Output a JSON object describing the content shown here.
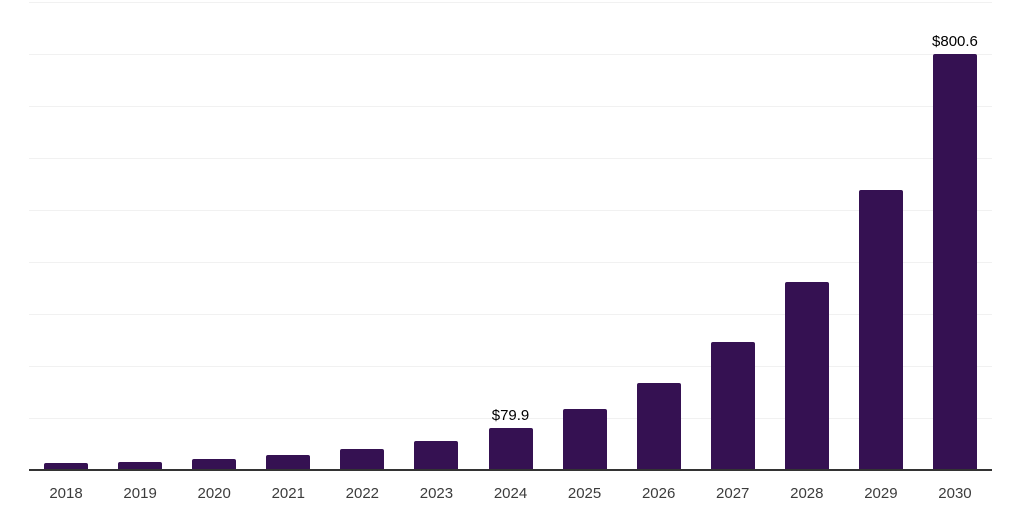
{
  "chart_data": {
    "type": "bar",
    "title": "",
    "xlabel": "",
    "ylabel": "",
    "categories": [
      "2018",
      "2019",
      "2020",
      "2021",
      "2022",
      "2023",
      "2024",
      "2025",
      "2026",
      "2027",
      "2028",
      "2029",
      "2030"
    ],
    "values": [
      13,
      16,
      21,
      28,
      40,
      55,
      79.9,
      117,
      167,
      246,
      361,
      538,
      800.6
    ],
    "data_labels": [
      "",
      "",
      "",
      "",
      "",
      "",
      "$79.9",
      "",
      "",
      "",
      "",
      "",
      "$800.6"
    ],
    "ylim": [
      0,
      900
    ],
    "gridline_step": 100,
    "grid": true,
    "legend_position": "none",
    "colors": {
      "bar": "#351152",
      "gridline": "#f1f1f1",
      "axis_line": "#333333",
      "tick_label": "#3c3c3c",
      "value_label": "#000000"
    }
  }
}
